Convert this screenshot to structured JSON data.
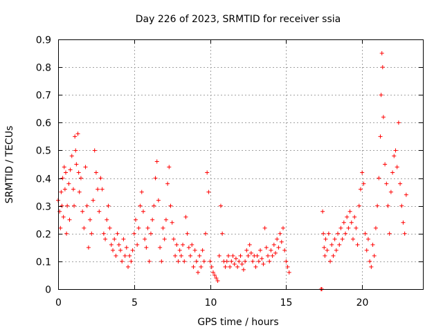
{
  "chart_data": {
    "type": "scatter",
    "title": "Day 226 of 2023, SRMTID for receiver ssia",
    "xlabel": "GPS time / hours",
    "ylabel": "SRMTID / TECUs",
    "xlim": [
      0,
      24
    ],
    "ylim": [
      0,
      0.9
    ],
    "xticks": [
      0,
      5,
      10,
      15,
      20
    ],
    "xtick_labels": [
      "0",
      "5",
      "10",
      "15",
      "20"
    ],
    "yticks": [
      0,
      0.1,
      0.2,
      0.3,
      0.4,
      0.5,
      0.6,
      0.7,
      0.8,
      0.9
    ],
    "ytick_labels": [
      "0",
      "0.1",
      "0.2",
      "0.3",
      "0.4",
      "0.5",
      "0.6",
      "0.7",
      "0.8",
      "0.9"
    ],
    "grid": true,
    "marker": "+",
    "color": "#ff0000",
    "series": [
      {
        "name": "SRMTID",
        "points": [
          [
            0.0,
            0.32
          ],
          [
            0.1,
            0.28
          ],
          [
            0.15,
            0.22
          ],
          [
            0.2,
            0.35
          ],
          [
            0.25,
            0.3
          ],
          [
            0.3,
            0.4
          ],
          [
            0.35,
            0.26
          ],
          [
            0.4,
            0.44
          ],
          [
            0.45,
            0.36
          ],
          [
            0.5,
            0.42
          ],
          [
            0.55,
            0.2
          ],
          [
            0.6,
            0.3
          ],
          [
            0.7,
            0.38
          ],
          [
            0.75,
            0.25
          ],
          [
            0.8,
            0.43
          ],
          [
            0.9,
            0.48
          ],
          [
            1.0,
            0.36
          ],
          [
            1.05,
            0.3
          ],
          [
            1.1,
            0.55
          ],
          [
            1.15,
            0.5
          ],
          [
            1.2,
            0.45
          ],
          [
            1.3,
            0.56
          ],
          [
            1.35,
            0.42
          ],
          [
            1.4,
            0.35
          ],
          [
            1.5,
            0.4
          ],
          [
            1.6,
            0.28
          ],
          [
            1.7,
            0.22
          ],
          [
            1.8,
            0.44
          ],
          [
            1.9,
            0.3
          ],
          [
            2.0,
            0.15
          ],
          [
            2.1,
            0.25
          ],
          [
            2.2,
            0.2
          ],
          [
            2.3,
            0.32
          ],
          [
            2.4,
            0.5
          ],
          [
            2.5,
            0.42
          ],
          [
            2.6,
            0.36
          ],
          [
            2.7,
            0.28
          ],
          [
            2.8,
            0.4
          ],
          [
            2.9,
            0.36
          ],
          [
            3.0,
            0.2
          ],
          [
            3.1,
            0.18
          ],
          [
            3.2,
            0.25
          ],
          [
            3.3,
            0.3
          ],
          [
            3.4,
            0.22
          ],
          [
            3.5,
            0.16
          ],
          [
            3.6,
            0.14
          ],
          [
            3.7,
            0.18
          ],
          [
            3.8,
            0.12
          ],
          [
            3.9,
            0.2
          ],
          [
            4.0,
            0.16
          ],
          [
            4.1,
            0.14
          ],
          [
            4.2,
            0.1
          ],
          [
            4.3,
            0.18
          ],
          [
            4.4,
            0.12
          ],
          [
            4.5,
            0.15
          ],
          [
            4.6,
            0.08
          ],
          [
            4.7,
            0.12
          ],
          [
            4.8,
            0.1
          ],
          [
            4.9,
            0.14
          ],
          [
            5.0,
            0.2
          ],
          [
            5.1,
            0.25
          ],
          [
            5.2,
            0.16
          ],
          [
            5.3,
            0.22
          ],
          [
            5.4,
            0.3
          ],
          [
            5.5,
            0.35
          ],
          [
            5.6,
            0.28
          ],
          [
            5.7,
            0.18
          ],
          [
            5.8,
            0.15
          ],
          [
            5.9,
            0.22
          ],
          [
            6.0,
            0.1
          ],
          [
            6.1,
            0.2
          ],
          [
            6.2,
            0.25
          ],
          [
            6.3,
            0.3
          ],
          [
            6.4,
            0.4
          ],
          [
            6.5,
            0.46
          ],
          [
            6.6,
            0.32
          ],
          [
            6.7,
            0.15
          ],
          [
            6.8,
            0.1
          ],
          [
            6.9,
            0.22
          ],
          [
            7.0,
            0.18
          ],
          [
            7.1,
            0.25
          ],
          [
            7.2,
            0.38
          ],
          [
            7.3,
            0.44
          ],
          [
            7.4,
            0.3
          ],
          [
            7.5,
            0.24
          ],
          [
            7.6,
            0.18
          ],
          [
            7.7,
            0.12
          ],
          [
            7.8,
            0.16
          ],
          [
            7.9,
            0.1
          ],
          [
            8.0,
            0.14
          ],
          [
            8.1,
            0.12
          ],
          [
            8.2,
            0.16
          ],
          [
            8.3,
            0.1
          ],
          [
            8.4,
            0.26
          ],
          [
            8.5,
            0.2
          ],
          [
            8.6,
            0.15
          ],
          [
            8.7,
            0.12
          ],
          [
            8.8,
            0.16
          ],
          [
            8.9,
            0.08
          ],
          [
            9.0,
            0.14
          ],
          [
            9.1,
            0.1
          ],
          [
            9.2,
            0.06
          ],
          [
            9.3,
            0.12
          ],
          [
            9.4,
            0.08
          ],
          [
            9.5,
            0.14
          ],
          [
            9.6,
            0.1
          ],
          [
            9.7,
            0.2
          ],
          [
            9.8,
            0.42
          ],
          [
            9.9,
            0.35
          ],
          [
            10.0,
            0.1
          ],
          [
            10.1,
            0.08
          ],
          [
            10.2,
            0.06
          ],
          [
            10.3,
            0.05
          ],
          [
            10.4,
            0.04
          ],
          [
            10.5,
            0.03
          ],
          [
            10.6,
            0.12
          ],
          [
            10.7,
            0.3
          ],
          [
            10.8,
            0.2
          ],
          [
            10.9,
            0.1
          ],
          [
            11.0,
            0.08
          ],
          [
            11.1,
            0.1
          ],
          [
            11.2,
            0.12
          ],
          [
            11.3,
            0.08
          ],
          [
            11.4,
            0.1
          ],
          [
            11.5,
            0.12
          ],
          [
            11.6,
            0.09
          ],
          [
            11.7,
            0.11
          ],
          [
            11.8,
            0.08
          ],
          [
            11.9,
            0.1
          ],
          [
            12.0,
            0.12
          ],
          [
            12.1,
            0.09
          ],
          [
            12.2,
            0.07
          ],
          [
            12.3,
            0.1
          ],
          [
            12.4,
            0.14
          ],
          [
            12.5,
            0.12
          ],
          [
            12.6,
            0.16
          ],
          [
            12.7,
            0.13
          ],
          [
            12.8,
            0.1
          ],
          [
            12.9,
            0.12
          ],
          [
            13.0,
            0.08
          ],
          [
            13.1,
            0.12
          ],
          [
            13.2,
            0.1
          ],
          [
            13.3,
            0.14
          ],
          [
            13.4,
            0.11
          ],
          [
            13.5,
            0.09
          ],
          [
            13.6,
            0.22
          ],
          [
            13.7,
            0.15
          ],
          [
            13.8,
            0.12
          ],
          [
            13.9,
            0.1
          ],
          [
            14.0,
            0.14
          ],
          [
            14.1,
            0.12
          ],
          [
            14.2,
            0.16
          ],
          [
            14.3,
            0.13
          ],
          [
            14.4,
            0.18
          ],
          [
            14.5,
            0.15
          ],
          [
            14.6,
            0.2
          ],
          [
            14.7,
            0.17
          ],
          [
            14.8,
            0.22
          ],
          [
            14.9,
            0.14
          ],
          [
            15.0,
            0.1
          ],
          [
            15.1,
            0.08
          ],
          [
            15.2,
            0.06
          ],
          [
            17.3,
            0.0
          ],
          [
            17.35,
            0.0
          ],
          [
            17.4,
            0.28
          ],
          [
            17.45,
            0.2
          ],
          [
            17.5,
            0.15
          ],
          [
            17.55,
            0.12
          ],
          [
            17.6,
            0.18
          ],
          [
            17.7,
            0.14
          ],
          [
            17.8,
            0.2
          ],
          [
            17.9,
            0.1
          ],
          [
            18.0,
            0.16
          ],
          [
            18.1,
            0.12
          ],
          [
            18.2,
            0.18
          ],
          [
            18.3,
            0.14
          ],
          [
            18.4,
            0.2
          ],
          [
            18.5,
            0.16
          ],
          [
            18.6,
            0.22
          ],
          [
            18.7,
            0.18
          ],
          [
            18.8,
            0.24
          ],
          [
            18.9,
            0.2
          ],
          [
            19.0,
            0.26
          ],
          [
            19.1,
            0.22
          ],
          [
            19.2,
            0.28
          ],
          [
            19.3,
            0.24
          ],
          [
            19.4,
            0.18
          ],
          [
            19.5,
            0.26
          ],
          [
            19.6,
            0.22
          ],
          [
            19.7,
            0.16
          ],
          [
            19.8,
            0.3
          ],
          [
            19.9,
            0.36
          ],
          [
            20.0,
            0.42
          ],
          [
            20.1,
            0.38
          ],
          [
            20.2,
            0.2
          ],
          [
            20.3,
            0.14
          ],
          [
            20.4,
            0.18
          ],
          [
            20.5,
            0.1
          ],
          [
            20.6,
            0.08
          ],
          [
            20.7,
            0.16
          ],
          [
            20.8,
            0.12
          ],
          [
            20.9,
            0.22
          ],
          [
            21.0,
            0.3
          ],
          [
            21.1,
            0.4
          ],
          [
            21.2,
            0.55
          ],
          [
            21.25,
            0.7
          ],
          [
            21.3,
            0.85
          ],
          [
            21.35,
            0.8
          ],
          [
            21.4,
            0.62
          ],
          [
            21.5,
            0.45
          ],
          [
            21.6,
            0.38
          ],
          [
            21.7,
            0.3
          ],
          [
            21.8,
            0.2
          ],
          [
            21.9,
            0.35
          ],
          [
            22.0,
            0.42
          ],
          [
            22.1,
            0.48
          ],
          [
            22.2,
            0.5
          ],
          [
            22.3,
            0.44
          ],
          [
            22.4,
            0.6
          ],
          [
            22.5,
            0.38
          ],
          [
            22.6,
            0.3
          ],
          [
            22.7,
            0.24
          ],
          [
            22.8,
            0.2
          ],
          [
            22.9,
            0.34
          ]
        ]
      }
    ]
  }
}
